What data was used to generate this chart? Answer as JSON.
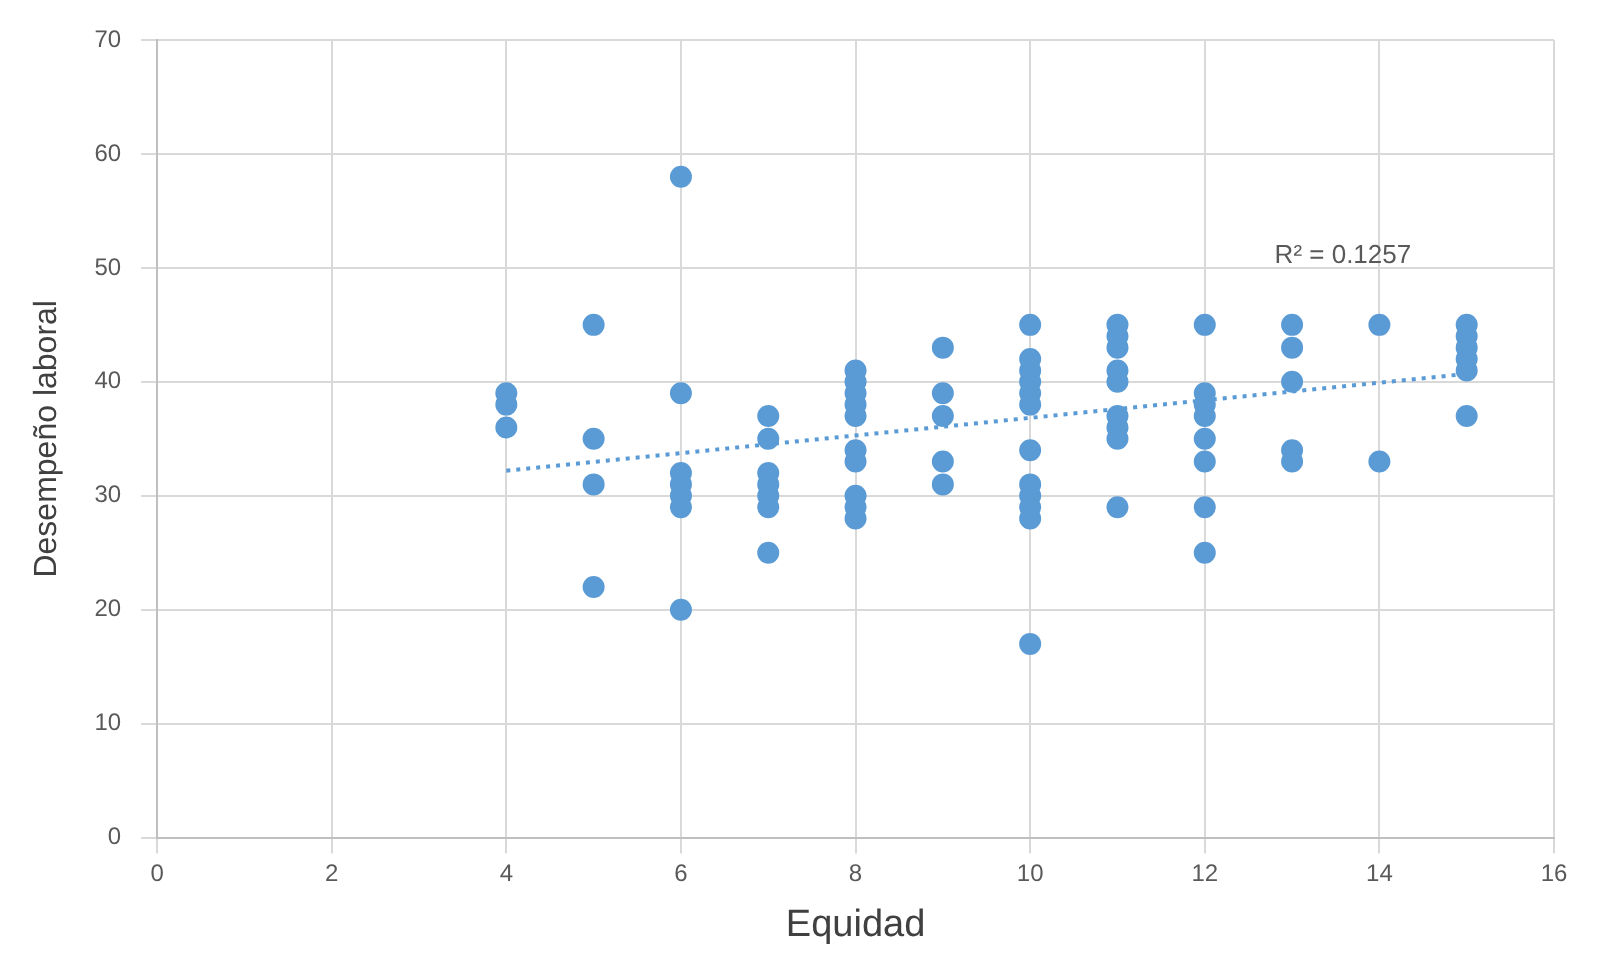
{
  "chart_data": {
    "type": "scatter",
    "xlabel": "Equidad",
    "ylabel": "Desempeño laboral",
    "xlim": [
      0,
      16
    ],
    "xticks": [
      0,
      2,
      4,
      6,
      8,
      10,
      12,
      14,
      16
    ],
    "ylim": [
      0,
      70
    ],
    "yticks": [
      0,
      10,
      20,
      30,
      40,
      50,
      60,
      70
    ],
    "grid": true,
    "legend": false,
    "marker": "circle",
    "series": [
      {
        "color": "#5b9bd5",
        "x": [
          4,
          4,
          4,
          5,
          5,
          5,
          5,
          6,
          6,
          6,
          6,
          6,
          6,
          6,
          7,
          7,
          7,
          7,
          7,
          7,
          7,
          8,
          8,
          8,
          8,
          8,
          8,
          8,
          8,
          8,
          8,
          9,
          9,
          9,
          9,
          9,
          10,
          10,
          10,
          10,
          10,
          10,
          10,
          10,
          10,
          10,
          10,
          10,
          11,
          11,
          11,
          11,
          11,
          11,
          11,
          11,
          11,
          12,
          12,
          12,
          12,
          12,
          12,
          12,
          12,
          13,
          13,
          13,
          13,
          13,
          14,
          14,
          15,
          15,
          15,
          15,
          15,
          15
        ],
        "values": [
          39,
          38,
          36,
          45,
          35,
          31,
          22,
          58,
          39,
          32,
          31,
          30,
          29,
          20,
          37,
          35,
          32,
          31,
          30,
          29,
          25,
          41,
          40,
          39,
          38,
          37,
          34,
          33,
          30,
          29,
          28,
          43,
          39,
          37,
          33,
          31,
          45,
          42,
          41,
          40,
          39,
          38,
          34,
          31,
          30,
          29,
          28,
          17,
          45,
          44,
          43,
          41,
          40,
          37,
          36,
          35,
          29,
          45,
          39,
          38,
          37,
          35,
          33,
          29,
          25,
          45,
          43,
          40,
          34,
          33,
          45,
          33,
          45,
          44,
          43,
          42,
          41,
          37
        ]
      },
      {
        "type": "line",
        "color": "#5b9bd5",
        "line_style": "dotted",
        "marker": "none",
        "x": [
          4,
          15
        ],
        "values": [
          32.2,
          40.7
        ]
      }
    ],
    "annotations": [
      "R² = 0.1257"
    ]
  }
}
